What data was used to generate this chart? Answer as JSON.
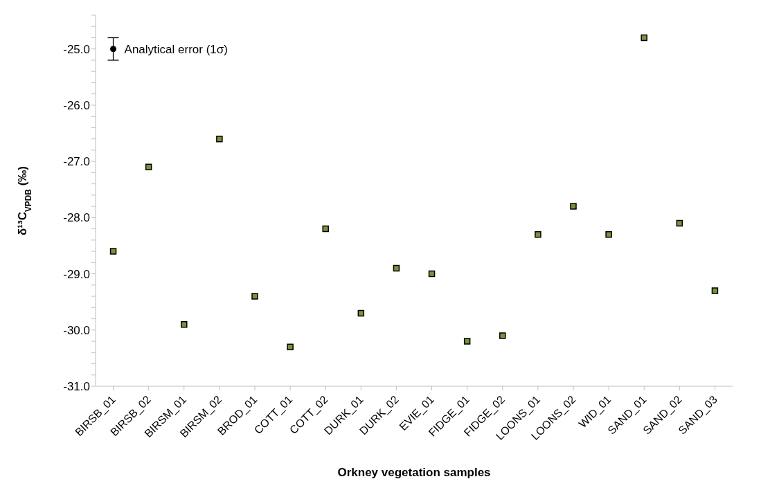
{
  "chart_data": {
    "type": "scatter",
    "xlabel": "Orkney vegetation samples",
    "ylabel": "δ¹³C$_{VPDB}$ (‰)",
    "categories": [
      "BIRSB_01",
      "BIRSB_02",
      "BIRSM_01",
      "BIRSM_02",
      "BROD_01",
      "COTT_01",
      "COTT_02",
      "DURK_01",
      "DURK_02",
      "EVIE_01",
      "FIDGE_01",
      "FIDGE_02",
      "LOONS_01",
      "LOONS_02",
      "WID_01",
      "SAND_01",
      "SAND_02",
      "SAND_03"
    ],
    "series": [
      {
        "color": "#77933c",
        "marker": "square",
        "values": [
          -28.6,
          -27.1,
          -29.9,
          -26.6,
          -29.4,
          -30.3,
          -28.2,
          -29.7,
          -28.9,
          -29.0,
          -30.2,
          -30.1,
          -28.3,
          -27.8,
          -28.3,
          -24.8,
          -28.1,
          -29.3
        ]
      },
      {
        "name": "Analytical error (1σ)",
        "color": "#000000",
        "marker": "circle",
        "x": [
          "BIRSB_01"
        ],
        "values": [
          -25.0
        ],
        "errors": [
          0.2
        ]
      }
    ],
    "ylim": [
      -31,
      -24.4
    ],
    "yticks": [
      {
        "value": -31,
        "label": "-31.0"
      },
      {
        "value": -30.8,
        "label": null
      },
      {
        "value": -30.6,
        "label": null
      },
      {
        "value": -30.4,
        "label": null
      },
      {
        "value": -30.2,
        "label": null
      },
      {
        "value": -30,
        "label": "-30.0"
      },
      {
        "value": -29.8,
        "label": null
      },
      {
        "value": -29.6,
        "label": null
      },
      {
        "value": -29.4,
        "label": null
      },
      {
        "value": -29.2,
        "label": null
      },
      {
        "value": -29,
        "label": "-29.0"
      },
      {
        "value": -28.8,
        "label": null
      },
      {
        "value": -28.6,
        "label": null
      },
      {
        "value": -28.4,
        "label": null
      },
      {
        "value": -28.2,
        "label": null
      },
      {
        "value": -28,
        "label": "-28.0"
      },
      {
        "value": -27.8,
        "label": null
      },
      {
        "value": -27.6,
        "label": null
      },
      {
        "value": -27.4,
        "label": null
      },
      {
        "value": -27.2,
        "label": null
      },
      {
        "value": -27,
        "label": "-27.0"
      },
      {
        "value": -26.8,
        "label": null
      },
      {
        "value": -26.6,
        "label": null
      },
      {
        "value": -26.4,
        "label": null
      },
      {
        "value": -26.2,
        "label": null
      },
      {
        "value": -26,
        "label": "-26.0"
      },
      {
        "value": -25.8,
        "label": null
      },
      {
        "value": -25.6,
        "label": null
      },
      {
        "value": -25.4,
        "label": null
      },
      {
        "value": -25.2,
        "label": null
      },
      {
        "value": -25,
        "label": "-25.0"
      },
      {
        "value": -24.8,
        "label": null
      },
      {
        "value": -24.6,
        "label": null
      },
      {
        "value": -24.4,
        "label": null
      }
    ],
    "grid": false,
    "legend": false
  }
}
